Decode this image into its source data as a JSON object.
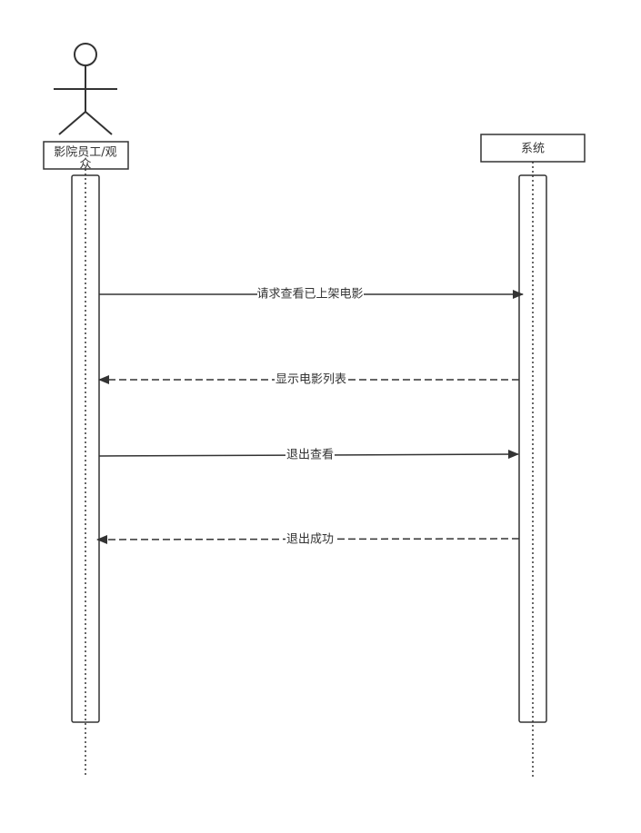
{
  "participants": {
    "actor": {
      "name_line1": "影院员工/观",
      "name_line2": "众"
    },
    "system": {
      "name": "系统"
    }
  },
  "messages": [
    {
      "label": "请求查看已上架电影",
      "style": "solid",
      "direction": "right"
    },
    {
      "label": "显示电影列表",
      "style": "dashed",
      "direction": "left"
    },
    {
      "label": "退出查看",
      "style": "solid",
      "direction": "right"
    },
    {
      "label": "退出成功",
      "style": "dashed",
      "direction": "left"
    }
  ],
  "colors": {
    "line": "#333333",
    "label_bg": "#ffffff"
  }
}
